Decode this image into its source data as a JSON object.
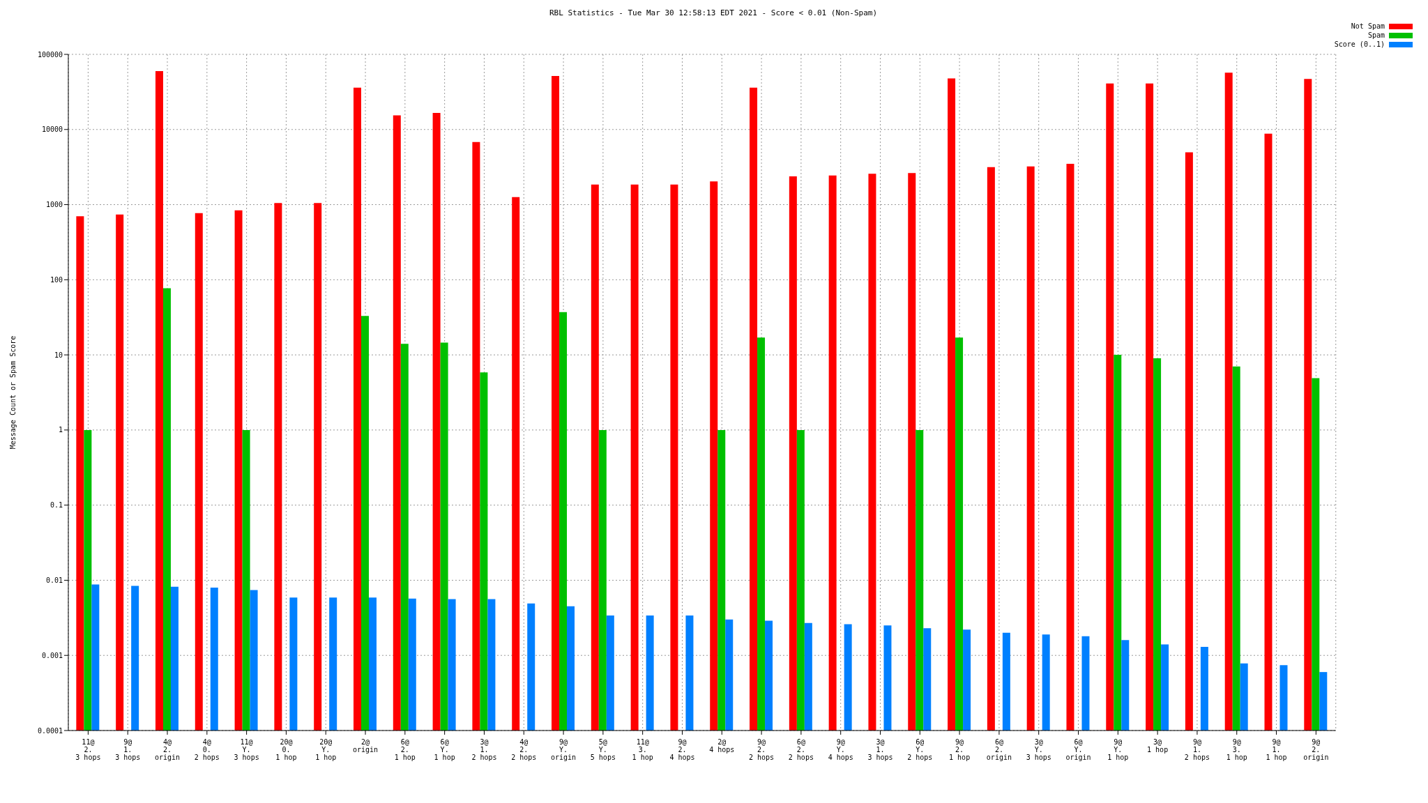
{
  "chart_data": {
    "type": "bar",
    "title": "RBL Statistics - Tue Mar 30 12:58:13 EDT 2021 - Score < 0.01 (Non-Spam)",
    "ylabel": "Message Count or Spam Score",
    "categories": [
      "11@\n2.\n3 hops",
      "9@\n1.\n3 hops",
      "4@\n2.\norigin",
      "4@\n0.\n2 hops",
      "11@\nY.\n3 hops",
      "20@\n0.\n1 hop",
      "20@\nY.\n1 hop",
      "2@\norigin",
      "6@\n2.\n1 hop",
      "6@\nY.\n1 hop",
      "3@\n1.\n2 hops",
      "4@\n2.\n2 hops",
      "9@\nY.\norigin",
      "5@\nY.\n5 hops",
      "11@\n3.\n1 hop",
      "9@\n2.\n4 hops",
      "2@\n4 hops",
      "9@\n2.\n2 hops",
      "6@\n2.\n2 hops",
      "9@\nY.\n4 hops",
      "3@\n1.\n3 hops",
      "6@\nY.\n2 hops",
      "9@\n2.\n1 hop",
      "6@\n2.\norigin",
      "3@\nY.\n3 hops",
      "6@\nY.\norigin",
      "9@\nY.\n1 hop",
      "3@\n1 hop",
      "9@\n1.\n2 hops",
      "9@\n3.\n1 hop",
      "9@\n1.\n1 hop",
      "9@\n2.\norigin"
    ],
    "series": [
      {
        "name": "Not Spam",
        "color": "#ff0000",
        "values": [
          700,
          740,
          60000,
          770,
          840,
          1050,
          1050,
          36000,
          15400,
          16600,
          6800,
          1260,
          51500,
          1850,
          1850,
          1850,
          2040,
          36000,
          2380,
          2440,
          2570,
          2630,
          47800,
          3150,
          3220,
          3490,
          41000,
          41000,
          4980,
          57000,
          8800,
          47000
        ]
      },
      {
        "name": "Spam",
        "color": "#00c000",
        "values": [
          1,
          null,
          77,
          null,
          1,
          null,
          null,
          33,
          14,
          14.6,
          5.85,
          null,
          37,
          1,
          null,
          null,
          1,
          17,
          1,
          null,
          null,
          1,
          17,
          null,
          null,
          null,
          10,
          9,
          null,
          7,
          null,
          4.9
        ]
      },
      {
        "name": "Score (0..1)",
        "color": "#0080ff",
        "values": [
          0.0088,
          0.0084,
          0.0082,
          0.008,
          0.0074,
          0.0059,
          0.0059,
          0.0059,
          0.0057,
          0.0056,
          0.0056,
          0.0049,
          0.0045,
          0.0034,
          0.0034,
          0.0034,
          0.003,
          0.0029,
          0.0027,
          0.0026,
          0.0025,
          0.0023,
          0.0022,
          0.002,
          0.0019,
          0.0018,
          0.0016,
          0.0014,
          0.0013,
          0.00078,
          0.00074,
          0.0006
        ]
      }
    ],
    "log": "y",
    "ylim": [
      0.0001,
      100000
    ],
    "yticks": [
      0.0001,
      0.001,
      0.01,
      0.1,
      1,
      10,
      100,
      1000,
      10000,
      100000
    ],
    "grid": true,
    "legend": "top right"
  }
}
